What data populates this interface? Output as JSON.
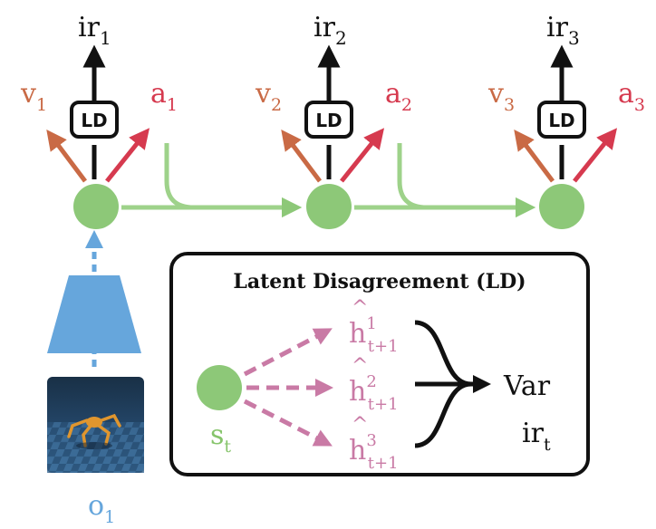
{
  "colors": {
    "black": "#111111",
    "green": "#8dc878",
    "green_line": "#9ed28a",
    "orange": "#c96a45",
    "red": "#d63a4f",
    "pink": "#c97aa5",
    "blue": "#66a6dc"
  },
  "steps": [
    {
      "ir_base": "ir",
      "ir_sub": "1",
      "ld_label": "LD",
      "v_base": "v",
      "v_sub": "1",
      "a_base": "a",
      "a_sub": "1"
    },
    {
      "ir_base": "ir",
      "ir_sub": "2",
      "ld_label": "LD",
      "v_base": "v",
      "v_sub": "2",
      "a_base": "a",
      "a_sub": "2"
    },
    {
      "ir_base": "ir",
      "ir_sub": "3",
      "ld_label": "LD",
      "v_base": "v",
      "v_sub": "3",
      "a_base": "a",
      "a_sub": "3"
    }
  ],
  "observation": {
    "base": "o",
    "sub": "1"
  },
  "ld_box": {
    "title": "Latent Disagreement (LD)",
    "state_base": "s",
    "state_sub": "t",
    "hats": [
      {
        "base": "h",
        "sup": "1",
        "sub": "t+1"
      },
      {
        "base": "h",
        "sup": "2",
        "sub": "t+1"
      },
      {
        "base": "h",
        "sup": "3",
        "sub": "t+1"
      }
    ],
    "var_label": "Var",
    "ir_base": "ir",
    "ir_sub": "t"
  }
}
